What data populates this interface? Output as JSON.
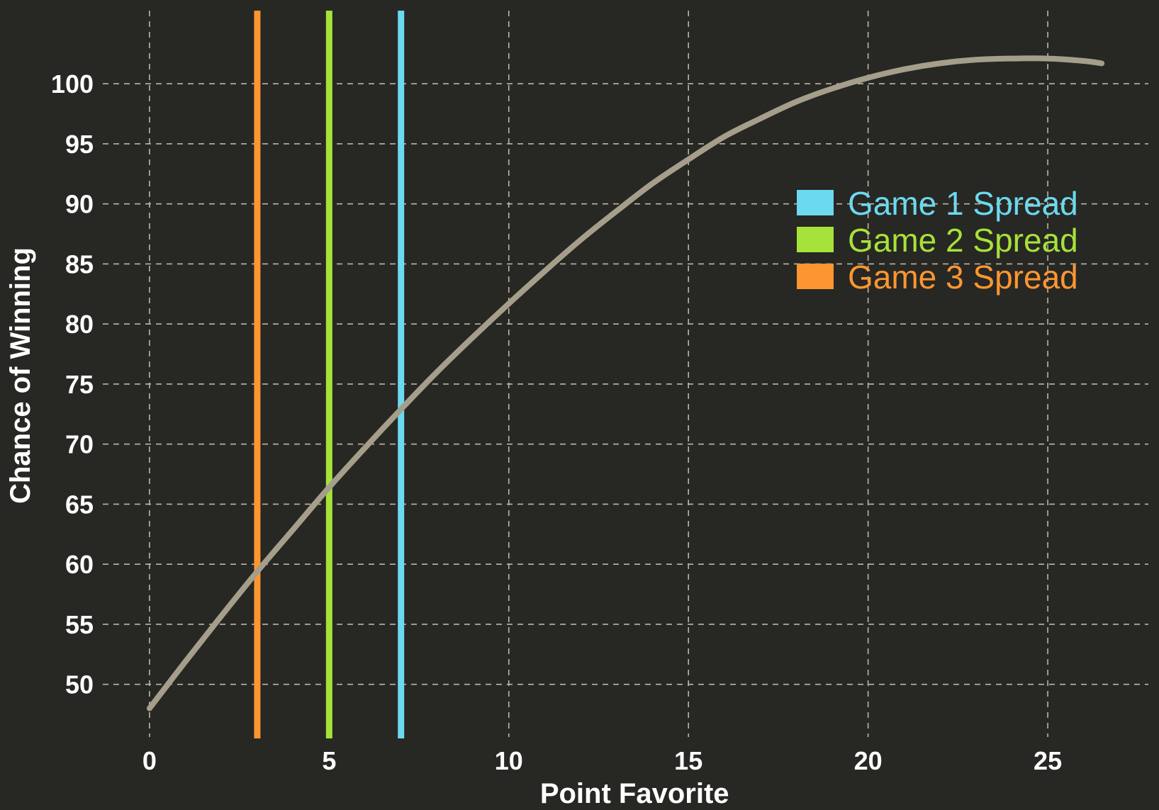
{
  "chart_data": {
    "type": "line",
    "xlabel": "Point Favorite",
    "ylabel": "Chance of Winning",
    "xlim": [
      -1.3,
      27.8
    ],
    "ylim": [
      45.5,
      106.5
    ],
    "x_ticks": [
      0,
      5,
      10,
      15,
      20,
      25
    ],
    "y_ticks": [
      50,
      55,
      60,
      65,
      70,
      75,
      80,
      85,
      90,
      95,
      100
    ],
    "grid": true,
    "background": "#272724",
    "grid_color": "#bdb6a1",
    "series": [
      {
        "color": "#a59e8a",
        "x": [
          0,
          1,
          2,
          3,
          4,
          5,
          6,
          7,
          8,
          9,
          10,
          11,
          12,
          13,
          14,
          15,
          16,
          17,
          18,
          19,
          20,
          21,
          22,
          23,
          24,
          25,
          26,
          26.5
        ],
        "y": [
          48.0,
          51.9,
          55.7,
          59.4,
          62.9,
          66.4,
          69.7,
          72.9,
          76.0,
          78.9,
          81.7,
          84.4,
          87.0,
          89.4,
          91.7,
          93.7,
          95.6,
          97.1,
          98.5,
          99.6,
          100.5,
          101.2,
          101.7,
          102.0,
          102.1,
          102.1,
          101.9,
          101.7
        ]
      }
    ],
    "vertical_lines": [
      {
        "name": "Game 1 Spread",
        "x": 7,
        "color": "#6bd9ef"
      },
      {
        "name": "Game 2 Spread",
        "x": 5,
        "color": "#a6e23a"
      },
      {
        "name": "Game 3 Spread",
        "x": 3,
        "color": "#fd9630"
      }
    ],
    "legend": {
      "position": "top-right",
      "entries": [
        {
          "label": "Game 1 Spread",
          "color": "#6bd9ef"
        },
        {
          "label": "Game 2 Spread",
          "color": "#a6e23a"
        },
        {
          "label": "Game 3 Spread",
          "color": "#fd9630"
        }
      ]
    }
  }
}
